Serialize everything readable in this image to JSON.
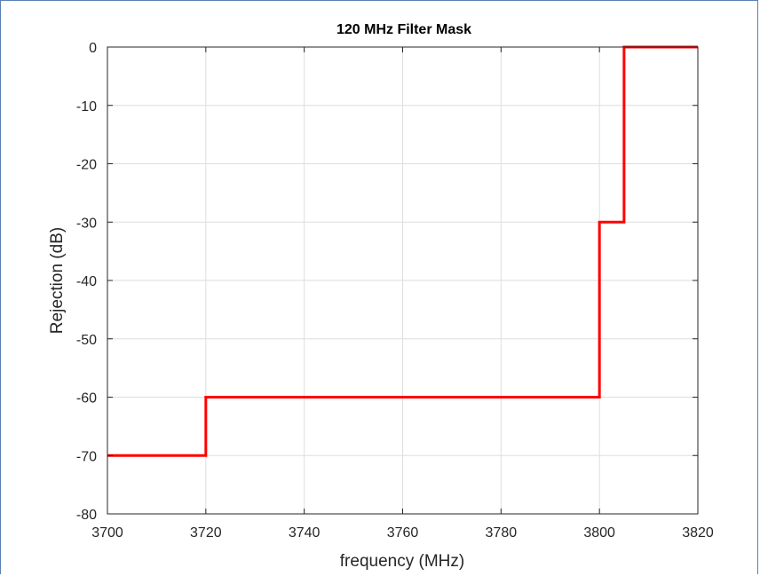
{
  "chart_data": {
    "type": "line",
    "title": "120 MHz Filter Mask",
    "xlabel": "frequency (MHz)",
    "ylabel": "Rejection (dB)",
    "xlim": [
      3700,
      3820
    ],
    "ylim": [
      -80,
      0
    ],
    "xticks": [
      3700,
      3720,
      3740,
      3760,
      3780,
      3800,
      3820
    ],
    "yticks": [
      0,
      -10,
      -20,
      -30,
      -40,
      -50,
      -60,
      -70,
      -80
    ],
    "grid": true,
    "series": [
      {
        "color": "#ff0000",
        "x": [
          3700,
          3720,
          3720,
          3800,
          3800,
          3805,
          3805,
          3820
        ],
        "y": [
          -70,
          -70,
          -60,
          -60,
          -30,
          -30,
          0,
          0
        ]
      }
    ]
  }
}
